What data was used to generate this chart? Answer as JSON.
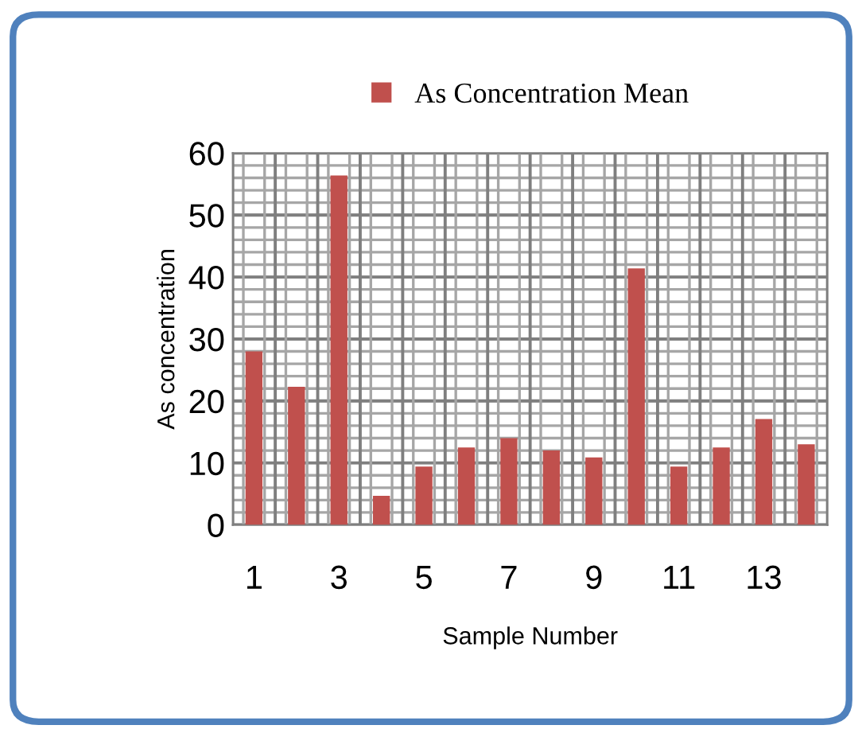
{
  "chart_data": {
    "type": "bar",
    "xlabel": "Sample Number",
    "ylabel": "As concentration",
    "categories": [
      "1",
      null,
      "3",
      null,
      "5",
      null,
      "7",
      null,
      "9",
      null,
      "11",
      null,
      "13",
      null
    ],
    "series": [
      {
        "name": "As Concentration Mean",
        "color": "#c0504d",
        "values": [
          28.0,
          22.3,
          56.4,
          4.7,
          9.4,
          12.5,
          14.0,
          12.0,
          10.9,
          41.4,
          9.4,
          12.5,
          17.1,
          13.0
        ]
      }
    ],
    "ylim": [
      0,
      60
    ],
    "yticks": [
      0,
      10,
      20,
      30,
      40,
      50,
      60
    ],
    "grid": true,
    "legend": "top"
  }
}
